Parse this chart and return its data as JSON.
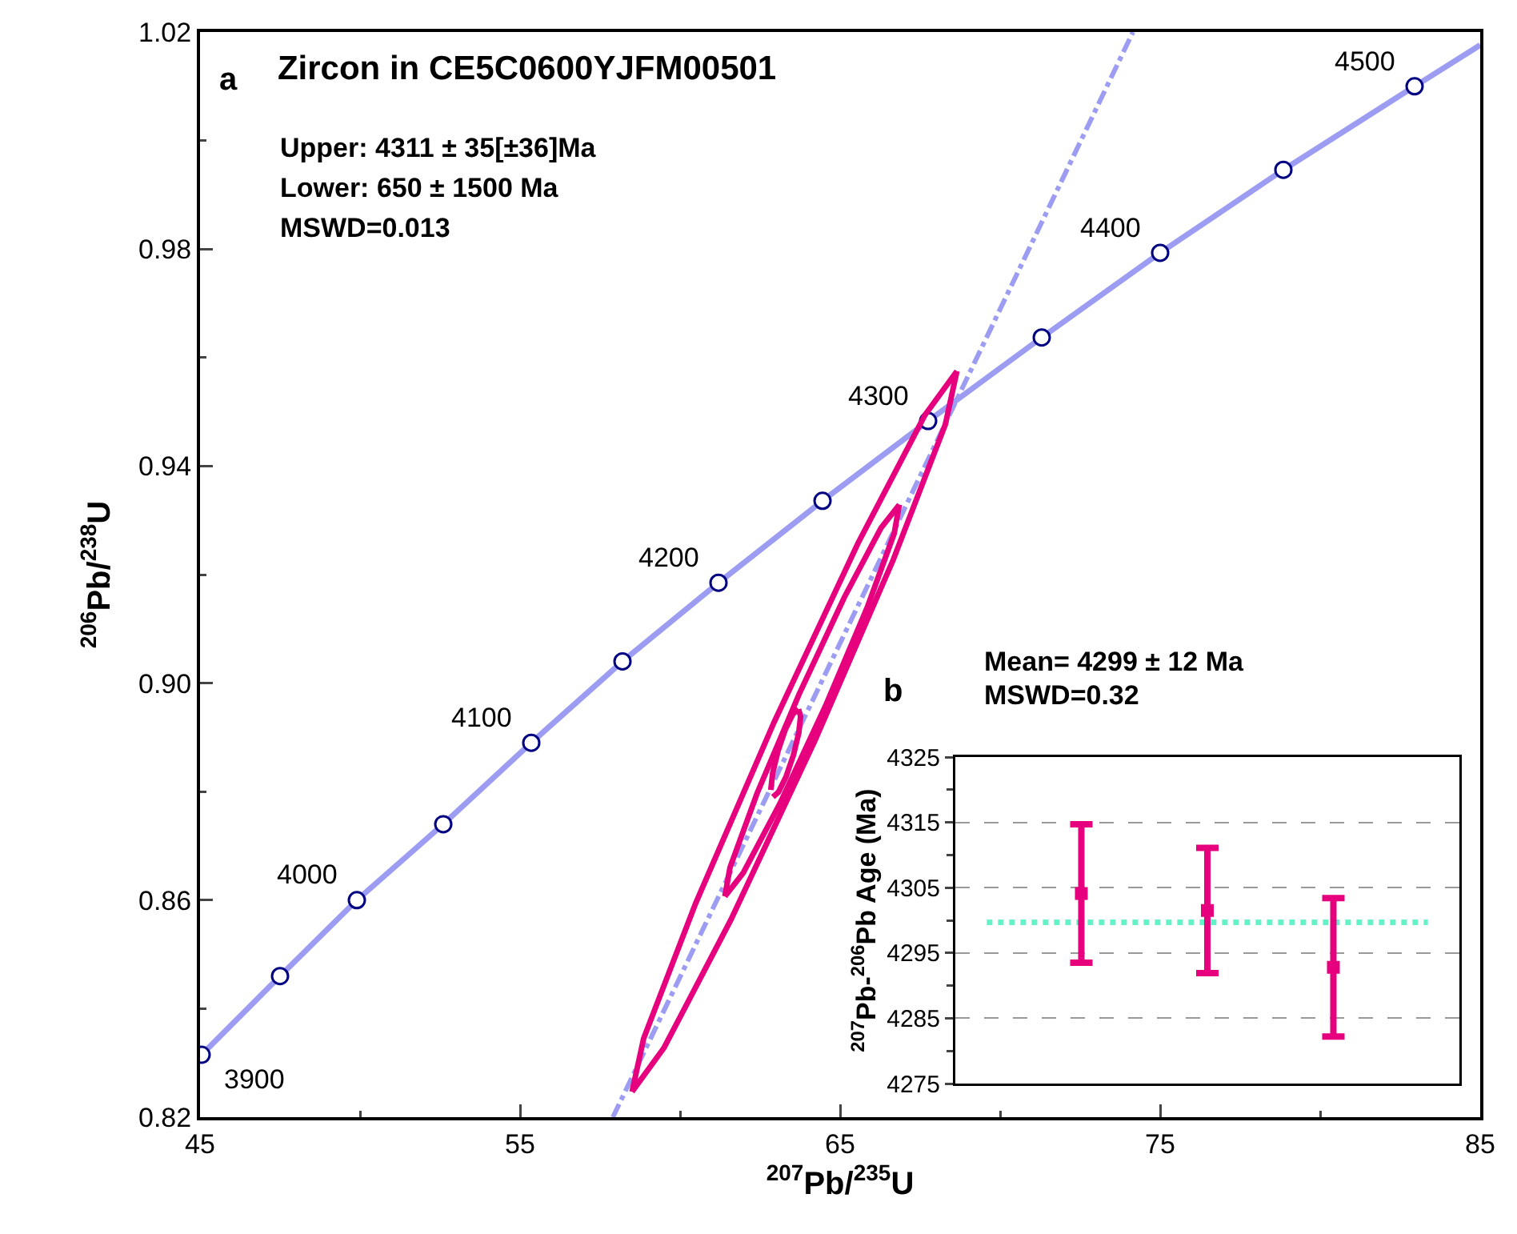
{
  "chart_data": [
    {
      "type": "line",
      "title": "Zircon in CE5C0600YJFM00501",
      "xlabel": "$^{207}$Pb/$^{235}$U",
      "ylabel": "$^{206}$Pb/$^{238}$U",
      "annotations": [
        "a",
        "Upper: 4311 ± 35[±36]Ma",
        "Lower: 650 ± 1500 Ma",
        "MSWD=0.013",
        {
          "text": "3900",
          "x": 45.05,
          "y": 0.8315
        },
        {
          "text": "4000",
          "x": 49.9,
          "y": 0.86
        },
        {
          "text": "4100",
          "x": 55.35,
          "y": 0.889
        },
        {
          "text": "4200",
          "x": 61.2,
          "y": 0.9185
        },
        {
          "text": "4300",
          "x": 67.75,
          "y": 0.9483
        },
        {
          "text": "4400",
          "x": 75.0,
          "y": 0.9793
        },
        {
          "text": "4500",
          "x": 82.95,
          "y": 1.01
        }
      ],
      "xlim": [
        45,
        85
      ],
      "ylim": [
        0.82,
        1.02
      ],
      "xticks": [
        45,
        {
          "value": 50,
          "label": null
        },
        55,
        {
          "value": 60,
          "label": null
        },
        65,
        {
          "value": 70,
          "label": null
        },
        75,
        {
          "value": 80,
          "label": null
        },
        85
      ],
      "yticks": [
        0.82,
        {
          "value": 0.84,
          "label": null
        },
        0.86,
        {
          "value": 0.88,
          "label": null
        },
        {
          "value": 0.9,
          "label": "0.90"
        },
        {
          "value": 0.92,
          "label": null
        },
        0.94,
        {
          "value": 0.96,
          "label": null
        },
        0.98,
        {
          "value": 1.0,
          "label": null
        },
        1.02
      ],
      "grid": false,
      "series": [
        {
          "color": "#9c9cf2",
          "marker": "none",
          "line_style": "solid",
          "x": [
            45,
            45.05,
            47.5,
            49.9,
            52.6,
            55.35,
            58.2,
            61.2,
            64.45,
            67.75,
            71.3,
            75.0,
            78.85,
            82.95,
            85
          ],
          "values": [
            0.8312,
            0.8315,
            0.846,
            0.86,
            0.874,
            0.889,
            0.904,
            0.9185,
            0.9336,
            0.9483,
            0.9637,
            0.9793,
            0.9946,
            1.01,
            1.0176
          ]
        },
        {
          "type": "scatter",
          "color": "#000080",
          "marker": "circle",
          "x": [
            45.05,
            47.5,
            49.9,
            52.6,
            55.35,
            58.2,
            61.2,
            64.45,
            67.75,
            71.3,
            75.0,
            78.85,
            82.95
          ],
          "values": [
            0.8315,
            0.846,
            0.86,
            0.874,
            0.889,
            0.904,
            0.9185,
            0.9336,
            0.9483,
            0.9637,
            0.9793,
            0.9946,
            1.01
          ]
        },
        {
          "color": "#9c9cf2",
          "marker": "none",
          "line_style": "dashdot",
          "x": [
            57.9,
            74.15
          ],
          "values": [
            0.82,
            1.02
          ]
        },
        {
          "type": "line",
          "color": "#e6007e",
          "marker": "none",
          "line_style": "solid",
          "x": [
            58.5,
            59.499,
            61.59,
            64.2125,
            66.665,
            68.289,
            68.65
          ],
          "values": [
            0.8247,
            0.8328,
            0.8564,
            0.8894,
            0.9228,
            0.9477,
            0.9575
          ]
        },
        {
          "type": "line",
          "color": "#e6007e",
          "marker": "none",
          "line_style": "solid",
          "x": [
            58.5,
            58.861,
            60.486,
            62.9375,
            65.56,
            67.651,
            68.65
          ],
          "values": [
            0.8247,
            0.8345,
            0.8594,
            0.8928,
            0.9258,
            0.9494,
            0.9575
          ]
        },
        {
          "type": "line",
          "color": "#e6007e",
          "marker": "none",
          "line_style": "solid",
          "x": [
            61.4,
            61.971,
            63.119,
            64.536,
            65.844,
            66.691,
            66.85
          ],
          "values": [
            0.8607,
            0.865,
            0.8778,
            0.8957,
            0.9139,
            0.9276,
            0.9329
          ]
        },
        {
          "type": "line",
          "color": "#e6007e",
          "marker": "none",
          "line_style": "solid",
          "x": [
            61.4,
            61.559,
            62.407,
            63.714,
            65.131,
            66.279,
            66.85
          ],
          "values": [
            0.8607,
            0.866,
            0.8797,
            0.8979,
            0.9158,
            0.9286,
            0.9329
          ]
        },
        {
          "type": "line",
          "color": "#e6007e",
          "marker": "none",
          "line_style": "solid",
          "x": [
            62.9,
            63.074,
            63.308,
            63.54,
            63.708,
            63.766,
            63.7
          ],
          "values": [
            0.879,
            0.8799,
            0.8827,
            0.8867,
            0.8908,
            0.8939,
            0.8952
          ]
        },
        {
          "type": "line",
          "color": "#e6007e",
          "marker": "none",
          "line_style": "solid",
          "x": [
            62.834,
            62.892,
            63.06,
            63.292,
            63.526,
            63.7
          ],
          "values": [
            0.8803,
            0.8834,
            0.8875,
            0.8915,
            0.8943,
            0.8952
          ]
        }
      ]
    },
    {
      "type": "scatter",
      "ylabel": "$^{207}$Pb-$^{206}$Pb Age (Ma)",
      "annotations": [
        "b",
        "Mean= 4299 ± 12 Ma",
        "MSWD=0.32"
      ],
      "categories": [
        null,
        null,
        null
      ],
      "ylim": [
        4275,
        4325
      ],
      "yticks": [
        4275,
        {
          "value": 4280,
          "label": null
        },
        4285,
        {
          "value": 4290,
          "label": null
        },
        4295,
        {
          "value": 4300,
          "label": null
        },
        4305,
        {
          "value": 4310,
          "label": null
        },
        4315,
        {
          "value": 4320,
          "label": null
        },
        4325
      ],
      "grid": "y",
      "tick_labels": "y",
      "ref_lines": [
        {
          "axis": "y",
          "value": 4299.7,
          "color": "#66f2c8",
          "line_style": "dotted"
        }
      ],
      "series": [
        {
          "color": "#e6007e",
          "marker": "square",
          "values": [
            4304.1,
            4301.5,
            4292.8
          ],
          "errors": [
            [
              4293.5,
              4314.7
            ],
            [
              4291.9,
              4311.1
            ],
            [
              4282.2,
              4303.4
            ]
          ]
        }
      ]
    }
  ]
}
